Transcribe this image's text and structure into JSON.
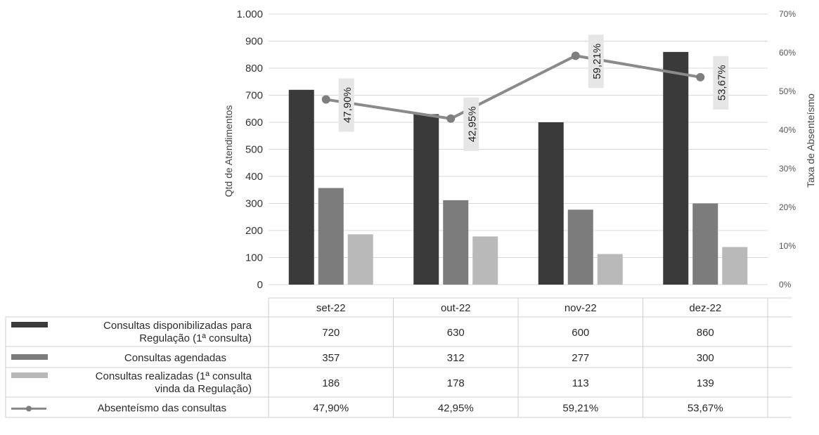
{
  "chart_data": {
    "type": "bar",
    "categories": [
      "set-22",
      "out-22",
      "nov-22",
      "dez-22"
    ],
    "series": [
      {
        "name": "Consultas disponibilizadas para Regulação (1ª consulta)",
        "label_lines": [
          "Consultas disponibilizadas para",
          "Regulação (1ª consulta)"
        ],
        "values": [
          720,
          630,
          600,
          860
        ],
        "display": [
          "720",
          "630",
          "600",
          "860"
        ],
        "color": "#3a3a3a",
        "axis": "left",
        "kind": "bar"
      },
      {
        "name": "Consultas agendadas",
        "label_lines": [
          "Consultas agendadas"
        ],
        "values": [
          357,
          312,
          277,
          300
        ],
        "display": [
          "357",
          "312",
          "277",
          "300"
        ],
        "color": "#7c7c7c",
        "axis": "left",
        "kind": "bar"
      },
      {
        "name": "Consultas realizadas (1ª consulta vinda da Regulação)",
        "label_lines": [
          "Consultas realizadas (1ª consulta",
          "vinda da Regulação)"
        ],
        "values": [
          186,
          178,
          113,
          139
        ],
        "display": [
          "186",
          "178",
          "113",
          "139"
        ],
        "color": "#b9b9b9",
        "axis": "left",
        "kind": "bar"
      },
      {
        "name": "Absenteísmo das consultas",
        "label_lines": [
          "Absenteísmo das consultas"
        ],
        "values": [
          47.9,
          42.95,
          59.21,
          53.67
        ],
        "display": [
          "47,90%",
          "42,95%",
          "59,21%",
          "53,67%"
        ],
        "color": "#8a8a8a",
        "axis": "right",
        "kind": "line"
      }
    ],
    "ylabel": "Qtd de Atendimentos",
    "y2label": "Taxa de Absenteísmo",
    "ylim": [
      0,
      1000
    ],
    "y2lim": [
      0,
      70
    ],
    "yticks": [
      0,
      100,
      200,
      300,
      400,
      500,
      600,
      700,
      800,
      900,
      1000
    ],
    "ytick_labels": [
      "0",
      "100",
      "200",
      "300",
      "400",
      "500",
      "600",
      "700",
      "800",
      "900",
      "1.000"
    ],
    "y2ticks": [
      0,
      10,
      20,
      30,
      40,
      50,
      60,
      70
    ],
    "y2tick_labels": [
      "0%",
      "10%",
      "20%",
      "30%",
      "40%",
      "50%",
      "60%",
      "70%"
    ],
    "grid": true,
    "data_table": true
  }
}
